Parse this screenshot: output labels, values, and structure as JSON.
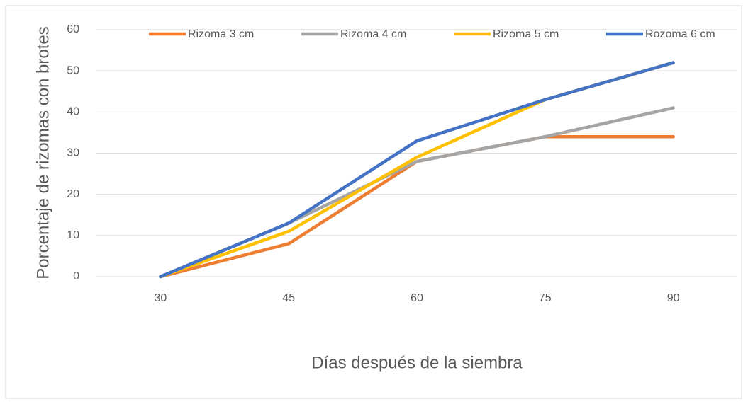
{
  "chart_data": {
    "type": "line",
    "x_label": "Días después de la siembra",
    "y_label": "Porcentaje de rizomas con brotes",
    "categories": [
      "30",
      "45",
      "60",
      "75",
      "90"
    ],
    "series": [
      {
        "name": "Rizoma 3 cm",
        "color": "#ED7D31",
        "values": [
          0,
          8,
          28,
          34,
          34
        ]
      },
      {
        "name": "Rizoma 4 cm",
        "color": "#A5A5A5",
        "values": [
          0,
          13,
          28,
          34,
          41
        ]
      },
      {
        "name": "Rizoma 5 cm",
        "color": "#FFC000",
        "values": [
          0,
          11,
          29,
          43,
          52
        ]
      },
      {
        "name": "Rozoma 6 cm",
        "color": "#4472C4",
        "values": [
          0,
          13,
          33,
          43,
          52
        ]
      }
    ],
    "ylim": [
      0,
      60
    ],
    "yticks": [
      0,
      10,
      20,
      30,
      40,
      50,
      60
    ],
    "grid": true,
    "legend": "top"
  }
}
